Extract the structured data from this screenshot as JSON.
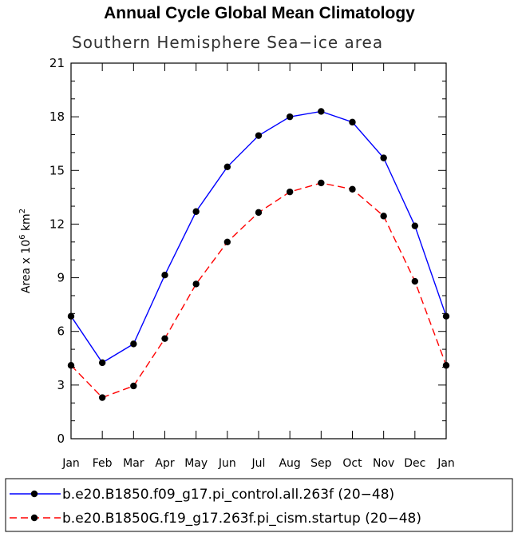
{
  "chart_data": {
    "type": "line",
    "title": "Annual Cycle Global Mean Climatology",
    "subtitle": "Southern Hemisphere Sea−ice area",
    "ylabel": "Area x 10",
    "ylabel_exponent": "6",
    "ylabel_unit": " km",
    "ylabel_unit_exponent": "2",
    "xlabel": "",
    "categories": [
      "Jan",
      "Feb",
      "Mar",
      "Apr",
      "May",
      "Jun",
      "Jul",
      "Aug",
      "Sep",
      "Oct",
      "Nov",
      "Dec",
      "Jan"
    ],
    "ylim": [
      0,
      21
    ],
    "yticks": [
      0,
      3,
      6,
      9,
      12,
      15,
      18,
      21
    ],
    "grid": false,
    "legend_placement": "bottom",
    "series": [
      {
        "name": "b.e20.B1850.f09_g17.pi_control.all.263f (20−48)",
        "color": "#0000ff",
        "dash": "solid",
        "values": [
          6.85,
          4.25,
          5.3,
          9.15,
          12.7,
          15.2,
          16.95,
          18.0,
          18.3,
          17.7,
          15.7,
          11.9,
          6.85
        ]
      },
      {
        "name": "b.e20.B1850G.f19_g17.263f.pi_cism.startup (20−48)",
        "color": "#ff0000",
        "dash": "dashed",
        "values": [
          4.1,
          2.3,
          2.95,
          5.6,
          8.65,
          11.0,
          12.65,
          13.8,
          14.3,
          13.95,
          12.45,
          8.8,
          4.1
        ]
      }
    ]
  }
}
